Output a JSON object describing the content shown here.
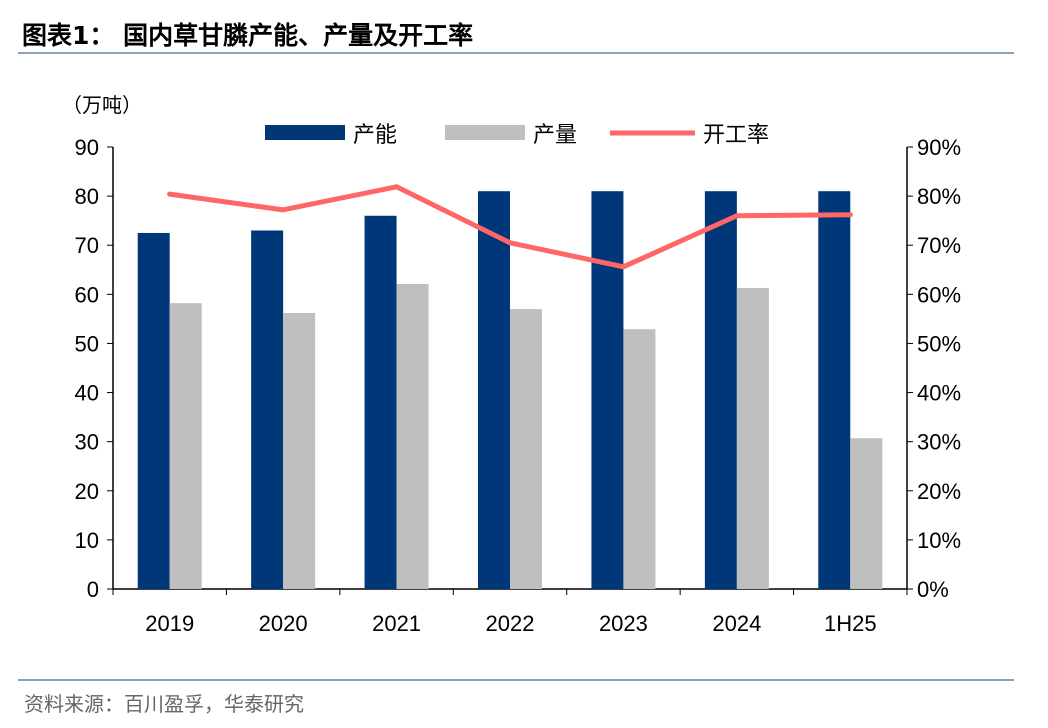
{
  "title": "图表1：  国内草甘膦产能、产量及开工率",
  "source": "资料来源：百川盈孚，华泰研究",
  "chart_data": {
    "type": "bar+line",
    "unit_label": "（万吨）",
    "categories": [
      "2019",
      "2020",
      "2021",
      "2022",
      "2023",
      "2024",
      "1H25"
    ],
    "series": [
      {
        "name": "产能",
        "type": "bar",
        "axis": "left",
        "color": "#003778",
        "values": [
          72.5,
          73,
          76,
          81,
          81,
          81,
          81
        ]
      },
      {
        "name": "产量",
        "type": "bar",
        "axis": "left",
        "color": "#bfbfbf",
        "values": [
          58.2,
          56.2,
          62.1,
          57,
          52.9,
          61.3,
          30.7
        ]
      },
      {
        "name": "开工率",
        "type": "line",
        "axis": "right",
        "color": "#ff6666",
        "values": [
          80.4,
          77.2,
          81.9,
          70.5,
          65.6,
          76.0,
          76.2
        ]
      }
    ],
    "left_axis": {
      "min": 0,
      "max": 90,
      "ticks": [
        "0",
        "10",
        "20",
        "30",
        "40",
        "50",
        "60",
        "70",
        "80",
        "90"
      ]
    },
    "right_axis": {
      "min": 0,
      "max": 90,
      "unit": "%",
      "ticks": [
        "0%",
        "10%",
        "20%",
        "30%",
        "40%",
        "50%",
        "60%",
        "70%",
        "80%",
        "90%"
      ]
    },
    "legend_position": "top",
    "grid": false
  }
}
